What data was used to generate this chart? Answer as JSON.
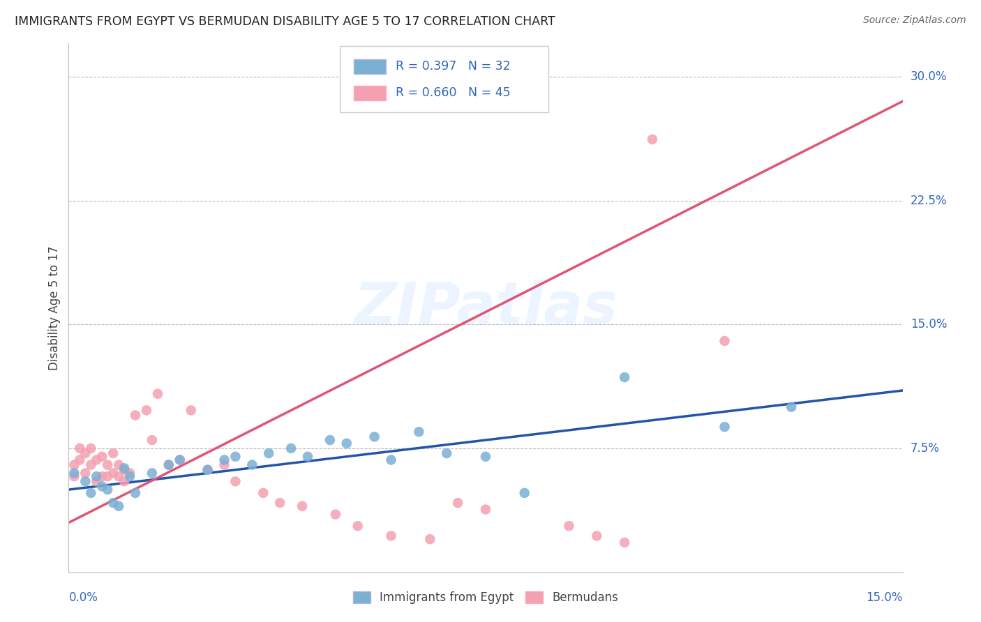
{
  "title": "IMMIGRANTS FROM EGYPT VS BERMUDAN DISABILITY AGE 5 TO 17 CORRELATION CHART",
  "source": "Source: ZipAtlas.com",
  "ylabel": "Disability Age 5 to 17",
  "color_egypt": "#7BAFD4",
  "color_bermuda": "#F4A0B0",
  "color_egypt_line": "#2255AA",
  "color_bermuda_line": "#E05575",
  "watermark": "ZIPatlas",
  "legend_r_egypt": "R = 0.397",
  "legend_n_egypt": "N = 32",
  "legend_r_bermuda": "R = 0.660",
  "legend_n_bermuda": "N = 45",
  "egypt_x": [
    0.001,
    0.003,
    0.004,
    0.005,
    0.006,
    0.007,
    0.008,
    0.009,
    0.01,
    0.011,
    0.012,
    0.015,
    0.018,
    0.02,
    0.025,
    0.028,
    0.03,
    0.033,
    0.036,
    0.04,
    0.043,
    0.047,
    0.05,
    0.055,
    0.058,
    0.063,
    0.068,
    0.075,
    0.082,
    0.1,
    0.118,
    0.13
  ],
  "egypt_y": [
    0.06,
    0.055,
    0.048,
    0.058,
    0.052,
    0.05,
    0.042,
    0.04,
    0.063,
    0.058,
    0.048,
    0.06,
    0.065,
    0.068,
    0.062,
    0.068,
    0.07,
    0.065,
    0.072,
    0.075,
    0.07,
    0.08,
    0.078,
    0.082,
    0.068,
    0.085,
    0.072,
    0.07,
    0.048,
    0.118,
    0.088,
    0.1
  ],
  "bermuda_x": [
    0.001,
    0.001,
    0.002,
    0.002,
    0.003,
    0.003,
    0.004,
    0.004,
    0.005,
    0.005,
    0.006,
    0.006,
    0.007,
    0.007,
    0.008,
    0.008,
    0.009,
    0.009,
    0.01,
    0.01,
    0.011,
    0.012,
    0.014,
    0.015,
    0.016,
    0.018,
    0.02,
    0.022,
    0.025,
    0.028,
    0.03,
    0.035,
    0.038,
    0.042,
    0.048,
    0.052,
    0.058,
    0.065,
    0.07,
    0.075,
    0.09,
    0.095,
    0.1,
    0.105,
    0.118
  ],
  "bermuda_y": [
    0.065,
    0.058,
    0.068,
    0.075,
    0.072,
    0.06,
    0.065,
    0.075,
    0.068,
    0.055,
    0.07,
    0.058,
    0.065,
    0.058,
    0.072,
    0.06,
    0.065,
    0.058,
    0.062,
    0.055,
    0.06,
    0.095,
    0.098,
    0.08,
    0.108,
    0.065,
    0.068,
    0.098,
    0.062,
    0.065,
    0.055,
    0.048,
    0.042,
    0.04,
    0.035,
    0.028,
    0.022,
    0.02,
    0.042,
    0.038,
    0.028,
    0.022,
    0.018,
    0.262,
    0.14
  ],
  "xlim": [
    0.0,
    0.15
  ],
  "ylim": [
    0.0,
    0.32
  ],
  "ytick_vals": [
    0.075,
    0.15,
    0.225,
    0.3
  ],
  "ytick_labels": [
    "7.5%",
    "15.0%",
    "22.5%",
    "30.0%"
  ]
}
